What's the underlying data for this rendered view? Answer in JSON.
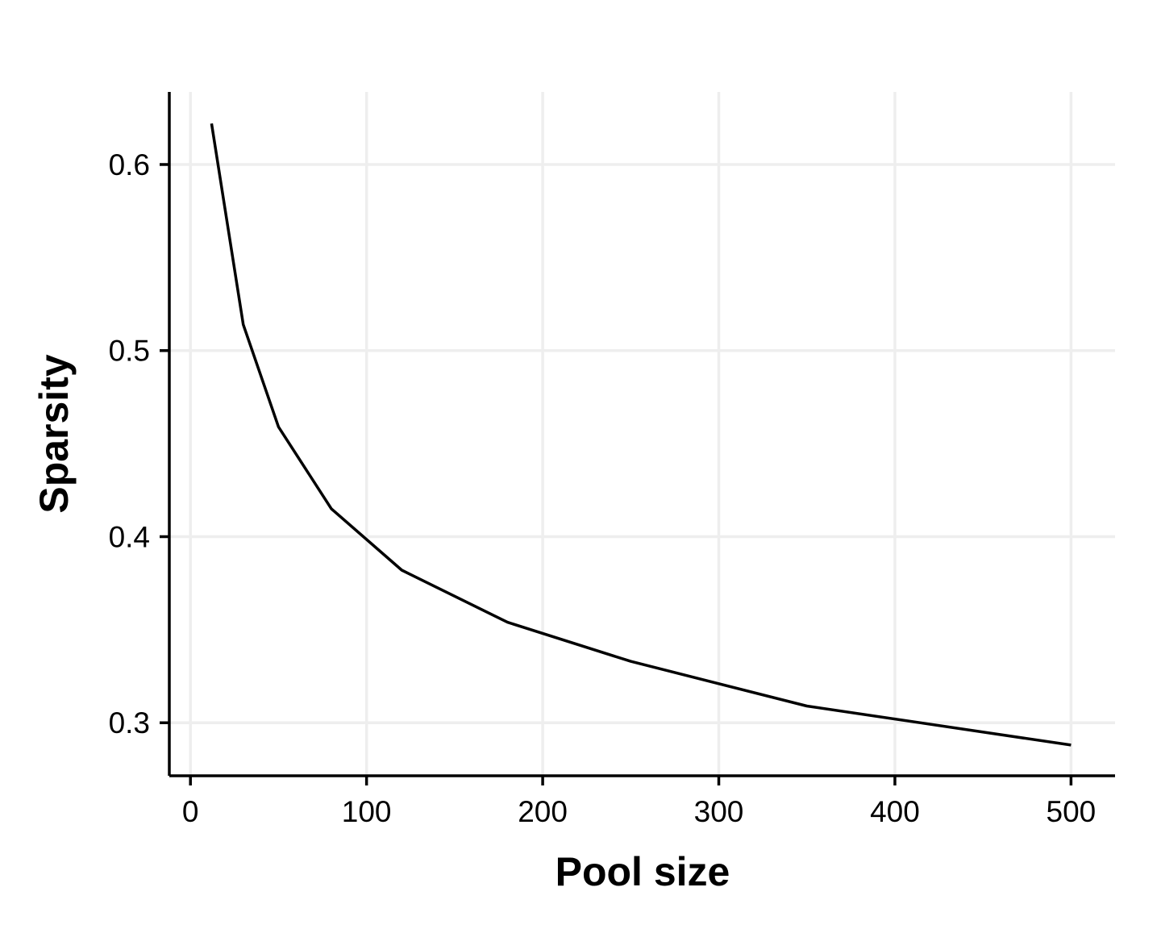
{
  "chart_data": {
    "type": "line",
    "xlabel": "Pool size",
    "ylabel": "Sparsity",
    "xlim": [
      -12,
      525
    ],
    "ylim": [
      0.2715,
      0.639
    ],
    "x_ticks": [
      0,
      100,
      200,
      300,
      400,
      500
    ],
    "x_tick_labels": [
      "0",
      "100",
      "200",
      "300",
      "400",
      "500"
    ],
    "y_ticks": [
      0.3,
      0.4,
      0.5,
      0.6
    ],
    "y_tick_labels": [
      "0.3",
      "0.4",
      "0.5",
      "0.6"
    ],
    "grid": true,
    "legend": "none",
    "series": [
      {
        "color": "#000000",
        "x": [
          12,
          30,
          50,
          80,
          120,
          180,
          250,
          350,
          500
        ],
        "y": [
          0.622,
          0.514,
          0.459,
          0.415,
          0.382,
          0.354,
          0.333,
          0.309,
          0.288
        ]
      }
    ]
  }
}
